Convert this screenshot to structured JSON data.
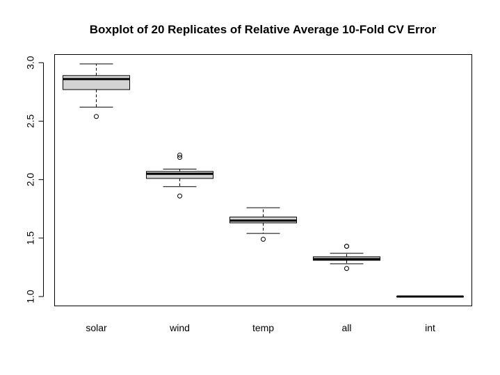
{
  "chart_data": {
    "type": "boxplot",
    "title": "Boxplot of 20 Replicates of Relative Average 10-Fold CV Error",
    "xlabel": "",
    "ylabel": "",
    "ylim": [
      0.92,
      3.07
    ],
    "yticks": [
      1.0,
      1.5,
      2.0,
      2.5,
      3.0
    ],
    "ytick_labels": [
      "1.0",
      "1.5",
      "2.0",
      "2.5",
      "3.0"
    ],
    "categories": [
      "solar",
      "wind",
      "temp",
      "all",
      "int"
    ],
    "box_fill": "#d3d3d3",
    "boxes": [
      {
        "name": "solar",
        "whisker_low": 2.62,
        "q1": 2.77,
        "median": 2.86,
        "q3": 2.89,
        "whisker_high": 2.99,
        "outliers": [
          2.54
        ]
      },
      {
        "name": "wind",
        "whisker_low": 1.94,
        "q1": 2.01,
        "median": 2.05,
        "q3": 2.07,
        "whisker_high": 2.09,
        "outliers": [
          1.86,
          2.19,
          2.21
        ]
      },
      {
        "name": "temp",
        "whisker_low": 1.54,
        "q1": 1.63,
        "median": 1.65,
        "q3": 1.68,
        "whisker_high": 1.76,
        "outliers": [
          1.49
        ]
      },
      {
        "name": "all",
        "whisker_low": 1.28,
        "q1": 1.31,
        "median": 1.32,
        "q3": 1.34,
        "whisker_high": 1.37,
        "outliers": [
          1.24,
          1.43,
          1.43
        ]
      },
      {
        "name": "int",
        "whisker_low": 1.0,
        "q1": 1.0,
        "median": 1.0,
        "q3": 1.0,
        "whisker_high": 1.0,
        "outliers": []
      }
    ]
  }
}
